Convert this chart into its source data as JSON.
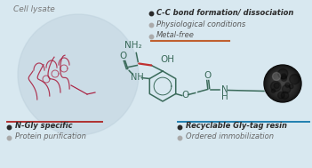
{
  "background_color": "#d8e8f0",
  "cell_lysate_label": "Cell lysate",
  "top_bullets": [
    {
      "text": "C-C bond formation/ dissociation",
      "color": "#2a2a2a",
      "bold": true
    },
    {
      "text": "Physiological conditions",
      "color": "#555555",
      "bold": false
    },
    {
      "text": "Metal-free",
      "color": "#555555",
      "bold": false
    }
  ],
  "bottom_left_bullets": [
    {
      "text": "N-Gly specific",
      "color": "#2a2a2a",
      "bold": true
    },
    {
      "text": "Protein purification",
      "color": "#666666",
      "bold": false
    }
  ],
  "bottom_right_bullets": [
    {
      "text": "Recyclable Gly-tag resin",
      "color": "#2a2a2a",
      "bold": true
    },
    {
      "text": "Ordered immobilization",
      "color": "#666666",
      "bold": false
    }
  ],
  "underline_left_color": "#b03030",
  "underline_center_color": "#c06030",
  "underline_right_color": "#2080b0",
  "molecule_color": "#3a6a5a",
  "red_bond_color": "#c03030",
  "protein_color": "#aa2040",
  "bullet_dark": "#2a2a2a",
  "bullet_gray": "#aaaaaa",
  "big_circle_color": "#b8ccd8",
  "big_circle_alpha": 0.4,
  "bead_dark": "#1a1a1a",
  "bead_mid": "#444444",
  "bead_light": "#888888"
}
